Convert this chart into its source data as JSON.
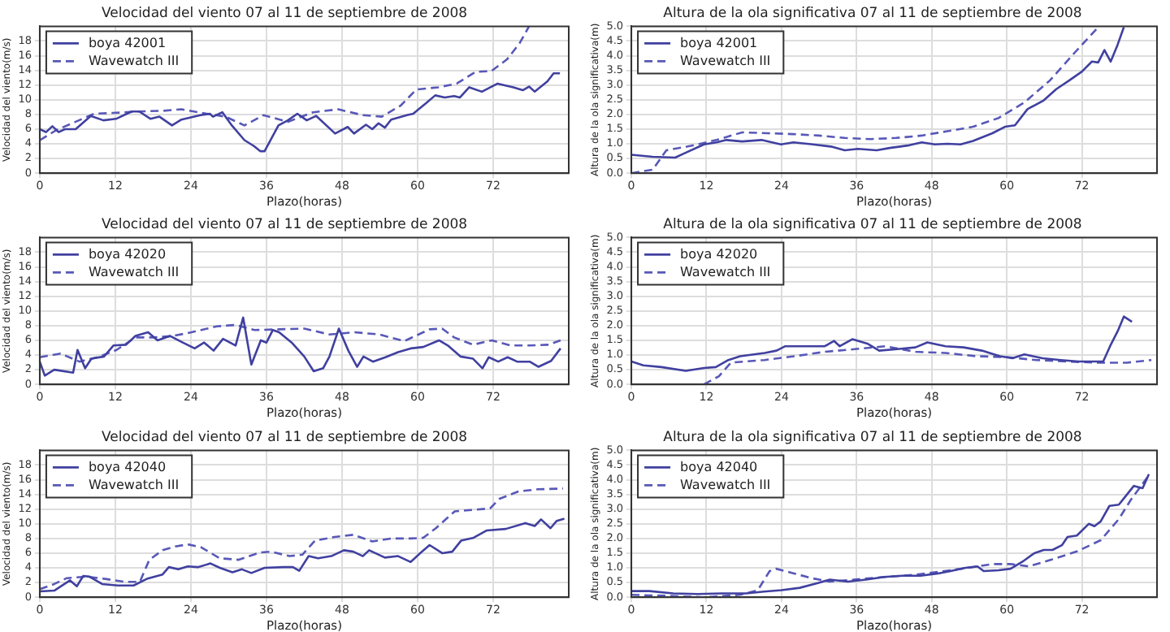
{
  "chart_data": [
    {
      "type": "line",
      "title": "Velocidad del viento 07 al 11 de septiembre de 2008",
      "xlabel": "Plazo(horas)",
      "ylabel": "Velocidad del viento(m/s)",
      "xlim": [
        0,
        84
      ],
      "xticks": [
        0,
        12,
        24,
        36,
        48,
        60,
        72
      ],
      "ylim": [
        0,
        20
      ],
      "yticks": [
        0,
        2,
        4,
        6,
        8,
        10,
        12,
        14,
        16,
        18
      ],
      "grid": true,
      "legend": "top left",
      "series": [
        {
          "name": "boya 42001",
          "color": "#4040a0",
          "line_style": "solid",
          "x": [
            0,
            1,
            2,
            3,
            4,
            5.7,
            8.1,
            10.1,
            12.1,
            14.6,
            15.8,
            17.6,
            19,
            21,
            22.5,
            25.5,
            27,
            27.5,
            29,
            30.5,
            32.5,
            34,
            35,
            35.7,
            37.9,
            39.4,
            40.9,
            42.4,
            43.9,
            46.9,
            48.9,
            49.9,
            51.8,
            52.8,
            53.8,
            54.8,
            55.8,
            58.3,
            59.3,
            61.3,
            62.8,
            64.3,
            65.8,
            66.7,
            68.2,
            70.2,
            72.7,
            75.2,
            76.7,
            77.7,
            78.6,
            80.6,
            81.6,
            82.6
          ],
          "values": [
            6.0,
            5.6,
            6.4,
            5.6,
            6.0,
            6.0,
            7.8,
            7.2,
            7.4,
            8.4,
            8.4,
            7.4,
            7.7,
            6.5,
            7.3,
            7.9,
            8.1,
            7.7,
            8.3,
            6.5,
            4.5,
            3.7,
            3.0,
            3.0,
            6.5,
            7.2,
            8.1,
            7.2,
            7.8,
            5.4,
            6.3,
            5.4,
            6.6,
            6.0,
            6.8,
            6.2,
            7.3,
            7.9,
            8.1,
            9.5,
            10.6,
            10.3,
            10.5,
            10.3,
            11.7,
            11.1,
            12.2,
            11.7,
            11.3,
            11.8,
            11.1,
            12.5,
            13.6,
            13.6
          ]
        },
        {
          "name": "Wavewatch III",
          "color": "#5858b8",
          "line_style": "dashed",
          "x": [
            0,
            2.7,
            5.7,
            8.6,
            11.6,
            15.6,
            19.6,
            22.5,
            26.5,
            29.5,
            32.5,
            35.5,
            39.4,
            43.4,
            47.4,
            51.3,
            54.3,
            57.3,
            59.8,
            63.3,
            66.2,
            69.2,
            71.7,
            74.2,
            76.2,
            77.7
          ],
          "values": [
            4.5,
            5.9,
            7.0,
            8.1,
            8.2,
            8.4,
            8.5,
            8.7,
            8.1,
            7.7,
            6.5,
            7.9,
            7.0,
            8.3,
            8.7,
            7.9,
            7.7,
            9.2,
            11.4,
            11.7,
            12.2,
            13.8,
            13.9,
            15.5,
            17.7,
            20
          ]
        }
      ]
    },
    {
      "type": "line",
      "title": "Altura de la ola significativa 07 al 11 de septiembre de 2008",
      "xlabel": "Plazo(horas)",
      "ylabel": "Altura de la ola significativa(m)",
      "xlim": [
        0,
        84
      ],
      "xticks": [
        0,
        12,
        24,
        36,
        48,
        60,
        72
      ],
      "ylim": [
        0,
        5
      ],
      "yticks": [
        {
          "value": 0,
          "label": "0.0"
        },
        0.5,
        {
          "value": 1,
          "label": "1.0"
        },
        1.5,
        {
          "value": 2,
          "label": "2.0"
        },
        2.5,
        {
          "value": 3,
          "label": "3.0"
        },
        3.5,
        {
          "value": 4,
          "label": "4.0"
        },
        4.5,
        {
          "value": 5,
          "label": "5.0"
        }
      ],
      "grid": true,
      "legend": "top left",
      "series": [
        {
          "name": "boya 42001",
          "color": "#4040a0",
          "line_style": "solid",
          "x": [
            0,
            3.4,
            7,
            8.5,
            11.6,
            13.6,
            15.2,
            17.7,
            20.8,
            23.9,
            25.9,
            29,
            32.1,
            34.1,
            36.2,
            39.2,
            41.3,
            44.4,
            46.4,
            48.5,
            50.5,
            52.6,
            54.6,
            57.7,
            59.7,
            61.3,
            63.3,
            65.9,
            67.9,
            70,
            72,
            73.6,
            74.6,
            75.6,
            76.6,
            77.7,
            78.7
          ],
          "values": [
            0.63,
            0.56,
            0.53,
            0.68,
            0.98,
            1.05,
            1.13,
            1.08,
            1.13,
            0.98,
            1.05,
            0.98,
            0.9,
            0.78,
            0.83,
            0.78,
            0.86,
            0.95,
            1.05,
            0.98,
            1.0,
            0.98,
            1.1,
            1.36,
            1.58,
            1.63,
            2.18,
            2.48,
            2.86,
            3.16,
            3.46,
            3.8,
            3.77,
            4.19,
            3.8,
            4.37,
            4.97
          ]
        },
        {
          "name": "Wavewatch III",
          "color": "#5858b8",
          "line_style": "dashed",
          "x": [
            0,
            3.4,
            5.6,
            9.5,
            13.6,
            17.7,
            21.8,
            25.9,
            30,
            34.1,
            38.2,
            42.3,
            46.4,
            50.5,
            54.6,
            58.7,
            62.8,
            66.9,
            71,
            74.6
          ],
          "values": [
            0,
            0.12,
            0.78,
            0.93,
            1.13,
            1.39,
            1.36,
            1.33,
            1.28,
            1.2,
            1.16,
            1.2,
            1.28,
            1.43,
            1.58,
            1.88,
            2.41,
            3.16,
            4.14,
            4.97
          ]
        }
      ]
    },
    {
      "type": "line",
      "title": "Velocidad del viento 07 al 11 de septiembre de 2008",
      "xlabel": "Plazo(horas)",
      "ylabel": "Velocidad del viento(m/s)",
      "xlim": [
        0,
        84
      ],
      "xticks": [
        0,
        12,
        24,
        36,
        48,
        60,
        72
      ],
      "ylim": [
        0,
        20
      ],
      "yticks": [
        0,
        2,
        4,
        6,
        8,
        10,
        12,
        14,
        16,
        18
      ],
      "grid": true,
      "legend": "top left",
      "series": [
        {
          "name": "boya 42020",
          "color": "#4040a0",
          "line_style": "solid",
          "x": [
            0,
            0.8,
            2.3,
            5.3,
            6,
            7.2,
            8.2,
            10.2,
            11.7,
            13.7,
            15.2,
            17.2,
            18.7,
            20.7,
            22.7,
            24.6,
            26.1,
            27.6,
            29.1,
            31.1,
            32.3,
            33.6,
            35.1,
            36,
            37,
            38,
            40,
            42,
            43.5,
            45,
            46,
            47.5,
            49,
            50.4,
            51.4,
            52.9,
            54.9,
            56.9,
            58.9,
            60.9,
            63.4,
            64.8,
            66.8,
            68.8,
            70.3,
            71.3,
            72.8,
            74.3,
            75.8,
            77.8,
            79.2,
            81.2,
            82.7
          ],
          "values": [
            3.1,
            1.2,
            2.0,
            1.6,
            4.7,
            2.2,
            3.5,
            3.8,
            5.3,
            5.4,
            6.6,
            7.1,
            6.0,
            6.6,
            5.7,
            4.9,
            5.7,
            4.6,
            6.2,
            5.3,
            9.1,
            2.7,
            6.0,
            5.7,
            7.4,
            7.1,
            5.7,
            3.8,
            1.8,
            2.2,
            3.8,
            7.6,
            4.6,
            2.4,
            3.8,
            3.1,
            3.7,
            4.4,
            4.9,
            5.1,
            6.0,
            5.3,
            3.8,
            3.5,
            2.2,
            3.7,
            3.1,
            3.7,
            3.1,
            3.1,
            2.4,
            3.2,
            4.9
          ]
        },
        {
          "name": "Wavewatch III",
          "color": "#5858b8",
          "line_style": "dashed",
          "x": [
            0,
            3.3,
            6.3,
            9.2,
            12.2,
            15.2,
            18.2,
            21.2,
            24.1,
            28.1,
            31.1,
            34.1,
            38,
            42,
            46,
            50,
            53.9,
            57.9,
            61.9,
            63.9,
            65.8,
            68.8,
            71.8,
            74.8,
            77.8,
            80.7,
            82.7
          ],
          "values": [
            3.7,
            4.2,
            3.1,
            3.7,
            4.7,
            6.4,
            6.4,
            6.6,
            7.1,
            7.9,
            8.1,
            7.4,
            7.5,
            7.6,
            6.8,
            7.1,
            6.8,
            5.9,
            7.5,
            7.6,
            6.4,
            5.4,
            6.0,
            5.3,
            5.3,
            5.4,
            6.0
          ]
        }
      ]
    },
    {
      "type": "line",
      "title": "Altura de la ola significativa 07 al 11 de septiembre de 2008",
      "xlabel": "Plazo(horas)",
      "ylabel": "Altura de la ola significativa(m)",
      "xlim": [
        0,
        84
      ],
      "xticks": [
        0,
        12,
        24,
        36,
        48,
        60,
        72
      ],
      "ylim": [
        0,
        5
      ],
      "yticks": [
        {
          "value": 0,
          "label": "0.0"
        },
        0.5,
        {
          "value": 1,
          "label": "1.0"
        },
        1.5,
        {
          "value": 2,
          "label": "2.0"
        },
        2.5,
        {
          "value": 3,
          "label": "3.0"
        },
        3.5,
        {
          "value": 4,
          "label": "4.0"
        },
        4.5,
        {
          "value": 5,
          "label": "5.0"
        }
      ],
      "grid": true,
      "legend": "top left",
      "series": [
        {
          "name": "boya 42020",
          "color": "#4040a0",
          "line_style": "solid",
          "x": [
            0,
            1.9,
            4.8,
            8.7,
            11.6,
            13.5,
            15.5,
            17.4,
            21.3,
            23.2,
            24.6,
            28,
            30.9,
            32.4,
            33.3,
            35.3,
            37.7,
            39.6,
            42.5,
            45.4,
            47.3,
            50.2,
            53.1,
            56,
            58.9,
            60.9,
            62.8,
            65.7,
            68.6,
            71.5,
            75.4,
            76.5,
            77.8,
            78.7,
            80
          ],
          "values": [
            0.78,
            0.65,
            0.59,
            0.46,
            0.56,
            0.59,
            0.83,
            0.96,
            1.07,
            1.15,
            1.3,
            1.3,
            1.3,
            1.48,
            1.3,
            1.54,
            1.39,
            1.15,
            1.2,
            1.26,
            1.43,
            1.3,
            1.26,
            1.15,
            0.96,
            0.89,
            1.02,
            0.89,
            0.83,
            0.78,
            0.78,
            1.3,
            1.85,
            2.31,
            2.13
          ]
        },
        {
          "name": "Wavewatch III",
          "color": "#5858b8",
          "line_style": "dashed",
          "x": [
            11.6,
            14,
            15.9,
            21.3,
            26.1,
            30.9,
            35.7,
            40.6,
            45.4,
            50.2,
            55.1,
            59.9,
            64.7,
            69.6,
            74.4,
            79.2,
            83.1
          ],
          "values": [
            0,
            0.28,
            0.74,
            0.83,
            0.96,
            1.11,
            1.2,
            1.3,
            1.11,
            1.07,
            0.96,
            0.93,
            0.83,
            0.78,
            0.74,
            0.74,
            0.83
          ]
        }
      ]
    },
    {
      "type": "line",
      "title": "Velocidad del viento 07 al 11 de septiembre de 2008",
      "xlabel": "Plazo(horas)",
      "ylabel": "Velocidad del viento(m/s)",
      "xlim": [
        0,
        84
      ],
      "xticks": [
        0,
        12,
        24,
        36,
        48,
        60,
        72
      ],
      "ylim": [
        0,
        20
      ],
      "yticks": [
        0,
        2,
        4,
        6,
        8,
        10,
        12,
        14,
        16,
        18
      ],
      "grid": true,
      "legend": "top left",
      "series": [
        {
          "name": "boya 42040",
          "color": "#4040a0",
          "line_style": "solid",
          "x": [
            0,
            2.3,
            4.8,
            5.9,
            6.9,
            7.9,
            9.9,
            12.4,
            14.9,
            17,
            19.5,
            20.5,
            22,
            23.5,
            25.1,
            27.1,
            28.6,
            30.6,
            32.1,
            33.6,
            35.7,
            38.7,
            40.2,
            41.2,
            42.7,
            44.2,
            46.3,
            48.3,
            49.8,
            51.3,
            52.3,
            54.8,
            56.9,
            58.9,
            60.4,
            61.9,
            63.9,
            65.5,
            66.9,
            68.9,
            71,
            74,
            77.1,
            78.6,
            79.6,
            81.1,
            82.1,
            83.3
          ],
          "values": [
            0.8,
            0.9,
            2.3,
            1.5,
            2.9,
            2.8,
            1.8,
            1.6,
            1.6,
            2.5,
            3.1,
            4.1,
            3.8,
            4.2,
            4.1,
            4.6,
            4.0,
            3.4,
            3.8,
            3.3,
            4.0,
            4.1,
            4.1,
            3.6,
            5.6,
            5.3,
            5.6,
            6.4,
            6.2,
            5.6,
            6.4,
            5.4,
            5.6,
            4.8,
            6.0,
            7.1,
            6.0,
            6.2,
            7.7,
            8.1,
            9.1,
            9.3,
            10.1,
            9.7,
            10.6,
            9.4,
            10.4,
            10.7
          ]
        },
        {
          "name": "Wavewatch III",
          "color": "#5858b8",
          "line_style": "dashed",
          "x": [
            0,
            2.3,
            4.3,
            7.4,
            10.4,
            13.4,
            15.9,
            17.4,
            19.5,
            21.5,
            23.5,
            25.6,
            28.6,
            31.6,
            35,
            36.7,
            39.7,
            41.7,
            43.7,
            46.8,
            49.8,
            52.8,
            55.9,
            58.9,
            60.9,
            62.9,
            65.9,
            68.9,
            71.5,
            73,
            76,
            79.1,
            83.1
          ],
          "values": [
            1.1,
            1.8,
            2.6,
            2.8,
            2.5,
            2.1,
            2.1,
            5.1,
            6.4,
            6.9,
            7.2,
            6.8,
            5.3,
            5.1,
            6.1,
            6.2,
            5.6,
            5.8,
            7.7,
            8.2,
            8.5,
            7.6,
            8.0,
            8.0,
            8.1,
            9.4,
            11.7,
            11.9,
            12.1,
            13.4,
            14.4,
            14.7,
            14.8
          ]
        }
      ]
    },
    {
      "type": "line",
      "title": "Altura de la ola significativa 07 al 11 de septiembre de 2008",
      "xlabel": "Plazo(horas)",
      "ylabel": "Altura de la ola significativa(m)",
      "xlim": [
        0,
        84
      ],
      "xticks": [
        0,
        12,
        24,
        36,
        48,
        60,
        72
      ],
      "ylim": [
        0,
        5
      ],
      "yticks": [
        {
          "value": 0,
          "label": "0.0"
        },
        0.5,
        {
          "value": 1,
          "label": "1.0"
        },
        1.5,
        {
          "value": 2,
          "label": "2.0"
        },
        2.5,
        {
          "value": 3,
          "label": "3.0"
        },
        3.5,
        {
          "value": 4,
          "label": "4.0"
        },
        4.5,
        {
          "value": 5,
          "label": "5.0"
        }
      ],
      "grid": true,
      "legend": "top left",
      "series": [
        {
          "name": "boya 42040",
          "color": "#4040a0",
          "line_style": "solid",
          "x": [
            0,
            2.9,
            6.7,
            10.6,
            14.4,
            18.3,
            21.2,
            24,
            26.9,
            29.8,
            31.7,
            34.6,
            37.5,
            40.4,
            43.3,
            46.2,
            49,
            51,
            53.4,
            55.3,
            56.3,
            58.7,
            60.6,
            62.5,
            64.4,
            65.9,
            67.3,
            68.8,
            69.7,
            71.2,
            73.1,
            74,
            75,
            76.4,
            77.9,
            78.8,
            80.3,
            81.7,
            82.7
          ],
          "values": [
            0.21,
            0.21,
            0.13,
            0.11,
            0.13,
            0.13,
            0.19,
            0.24,
            0.32,
            0.48,
            0.6,
            0.53,
            0.6,
            0.69,
            0.73,
            0.73,
            0.81,
            0.89,
            1.0,
            1.05,
            0.89,
            0.92,
            0.97,
            1.21,
            1.5,
            1.61,
            1.61,
            1.77,
            2.05,
            2.1,
            2.5,
            2.42,
            2.58,
            3.11,
            3.15,
            3.39,
            3.79,
            3.71,
            4.19
          ]
        },
        {
          "name": "Wavewatch III",
          "color": "#5858b8",
          "line_style": "dashed",
          "x": [
            0,
            5.8,
            11.5,
            17.3,
            20.2,
            22.1,
            23.1,
            26,
            28.8,
            31.7,
            35.6,
            40.4,
            45.2,
            50,
            53.8,
            57.7,
            60.6,
            63.5,
            67.3,
            71.2,
            75,
            77.9,
            79.8,
            82.7
          ],
          "values": [
            0.08,
            0.05,
            0,
            0.08,
            0.24,
            0.89,
            0.97,
            0.81,
            0.65,
            0.53,
            0.6,
            0.69,
            0.76,
            0.89,
            1.0,
            1.13,
            1.13,
            1.05,
            1.29,
            1.56,
            1.94,
            2.66,
            3.31,
            4.15
          ]
        }
      ]
    }
  ]
}
